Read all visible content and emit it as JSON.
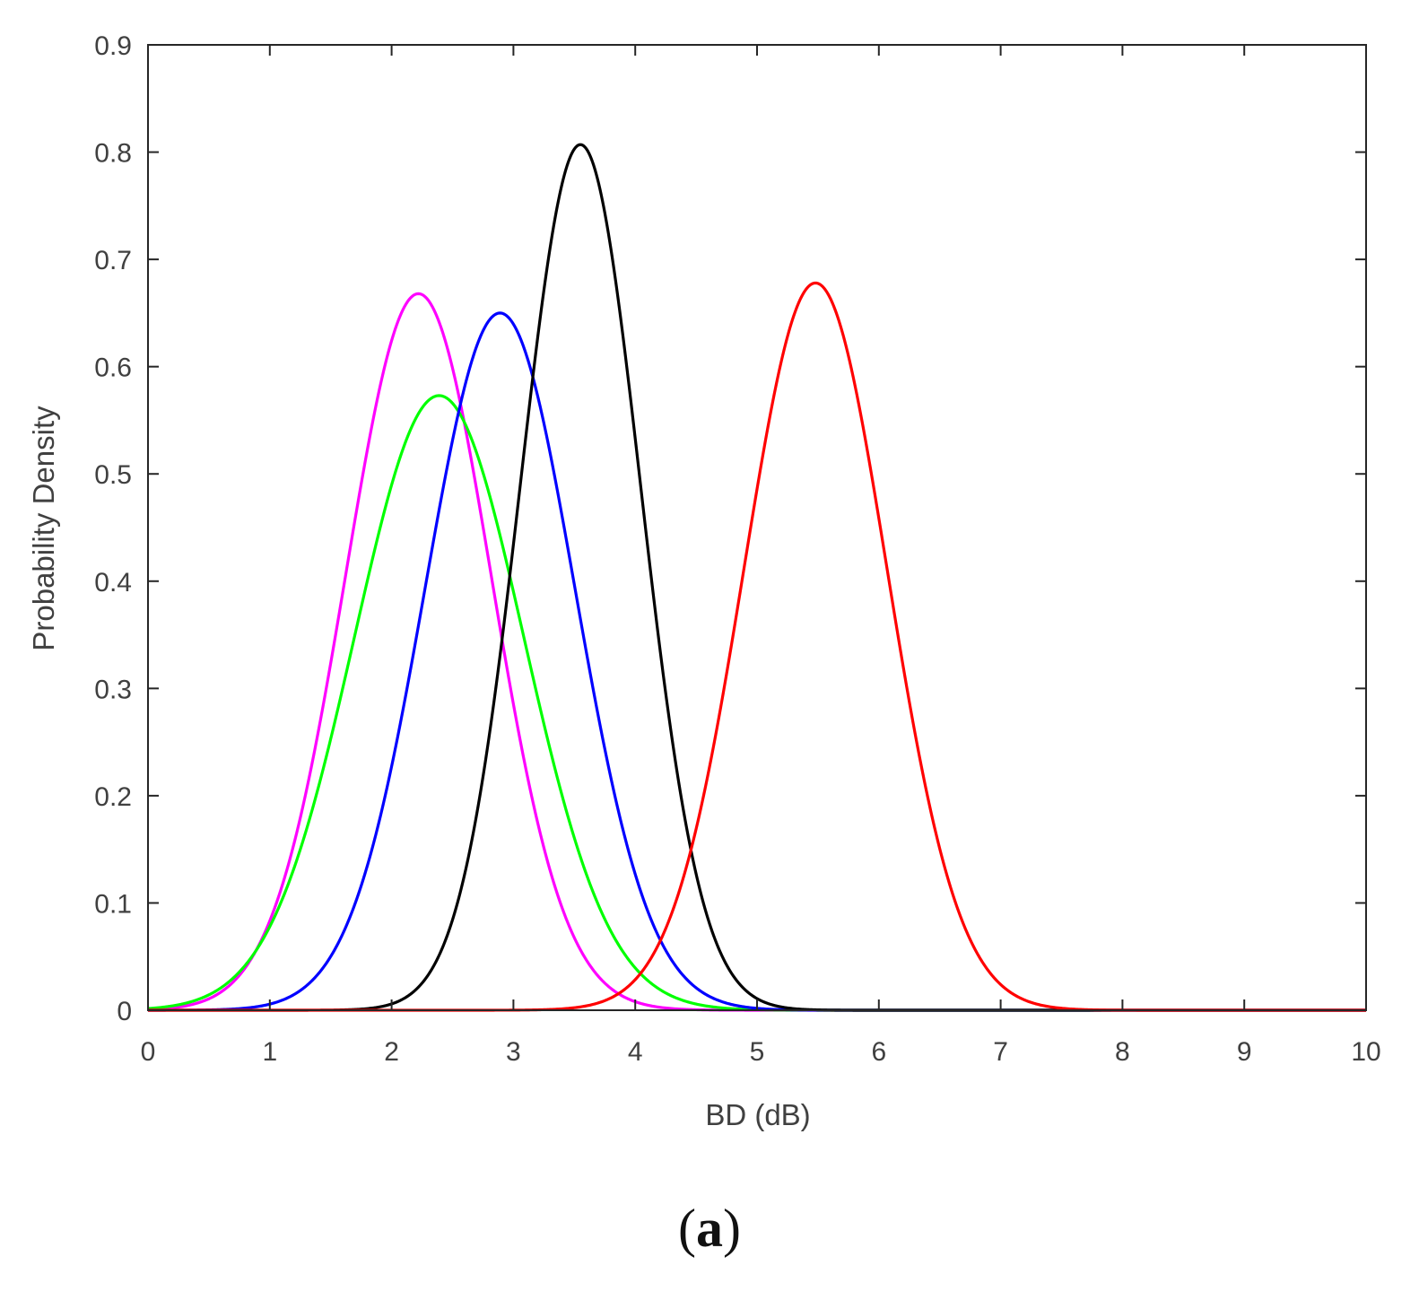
{
  "panel_label_open": "(",
  "panel_label_letter": "a",
  "panel_label_close": ")",
  "chart_data": {
    "type": "line",
    "title": "",
    "xlabel": "BD (dB)",
    "ylabel": "Probability Density",
    "xlim": [
      0,
      10
    ],
    "ylim": [
      0,
      0.9
    ],
    "xticks": [
      0,
      1,
      2,
      3,
      4,
      5,
      6,
      7,
      8,
      9,
      10
    ],
    "yticks": [
      0,
      0.1,
      0.2,
      0.3,
      0.4,
      0.5,
      0.6,
      0.7,
      0.8,
      0.9
    ],
    "xtick_labels": [
      "0",
      "1",
      "2",
      "3",
      "4",
      "5",
      "6",
      "7",
      "8",
      "9",
      "10"
    ],
    "ytick_labels": [
      "0",
      "0.1",
      "0.2",
      "0.3",
      "0.4",
      "0.5",
      "0.6",
      "0.7",
      "0.8",
      "0.9"
    ],
    "grid": false,
    "legend": false,
    "series": [
      {
        "color": "#ff00ff",
        "peak_x": 2.22,
        "peak_y": 0.668,
        "x": [
          0,
          0.5,
          1.0,
          1.5,
          2.0,
          2.22,
          2.5,
          3.0,
          3.5,
          4.0,
          4.5,
          5.0,
          5.5,
          10
        ],
        "y": [
          0.004,
          0.029,
          0.127,
          0.346,
          0.621,
          0.668,
          0.617,
          0.338,
          0.119,
          0.027,
          0.004,
          0.0004,
          0.0,
          0.0
        ]
      },
      {
        "color": "#00ff00",
        "peak_x": 2.39,
        "peak_y": 0.573,
        "x": [
          0,
          0.5,
          1.0,
          1.5,
          2.0,
          2.39,
          2.5,
          3.0,
          3.5,
          4.0,
          4.5,
          5.0,
          5.5,
          10
        ],
        "y": [
          0.005,
          0.032,
          0.125,
          0.319,
          0.523,
          0.573,
          0.569,
          0.43,
          0.232,
          0.087,
          0.022,
          0.004,
          0.0005,
          0.0
        ]
      },
      {
        "color": "#0000ff",
        "peak_x": 2.89,
        "peak_y": 0.65,
        "x": [
          0,
          0.5,
          1.0,
          1.5,
          2.0,
          2.5,
          2.89,
          3.0,
          3.5,
          4.0,
          4.5,
          5.0,
          5.5,
          10
        ],
        "y": [
          0.0,
          0.002,
          0.014,
          0.078,
          0.265,
          0.545,
          0.65,
          0.641,
          0.469,
          0.195,
          0.047,
          0.006,
          0.0005,
          0.0
        ]
      },
      {
        "color": "#000000",
        "peak_x": 3.55,
        "peak_y": 0.807,
        "x": [
          0,
          1.0,
          1.5,
          2.0,
          2.5,
          3.0,
          3.55,
          4.0,
          4.5,
          5.0,
          5.5,
          10
        ],
        "y": [
          0.0,
          0.0,
          0.0002,
          0.005,
          0.098,
          0.425,
          0.807,
          0.573,
          0.188,
          0.026,
          0.002,
          0.0
        ]
      },
      {
        "color": "#ff0000",
        "peak_x": 5.48,
        "peak_y": 0.678,
        "x": [
          0,
          2.0,
          3.0,
          3.5,
          4.0,
          4.5,
          5.0,
          5.48,
          6.0,
          6.5,
          7.0,
          7.5,
          8.0,
          10
        ],
        "y": [
          0.0,
          0.0,
          0.0,
          0.002,
          0.03,
          0.15,
          0.429,
          0.678,
          0.437,
          0.156,
          0.027,
          0.002,
          0.0,
          0.0
        ]
      }
    ],
    "curve_sigma": [
      0.598,
      0.696,
      0.614,
      0.494,
      0.588
    ]
  }
}
